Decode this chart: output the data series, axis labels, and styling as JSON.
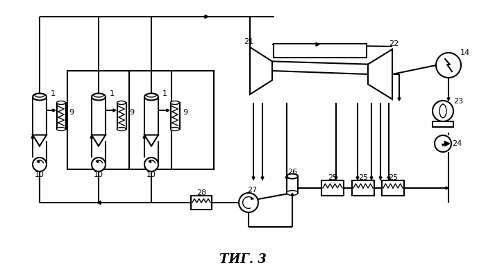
{
  "title": "ΤИГ. 3",
  "bg": "#ffffff",
  "lc": "#000000",
  "lw": 1.5,
  "lw2": 1.0
}
